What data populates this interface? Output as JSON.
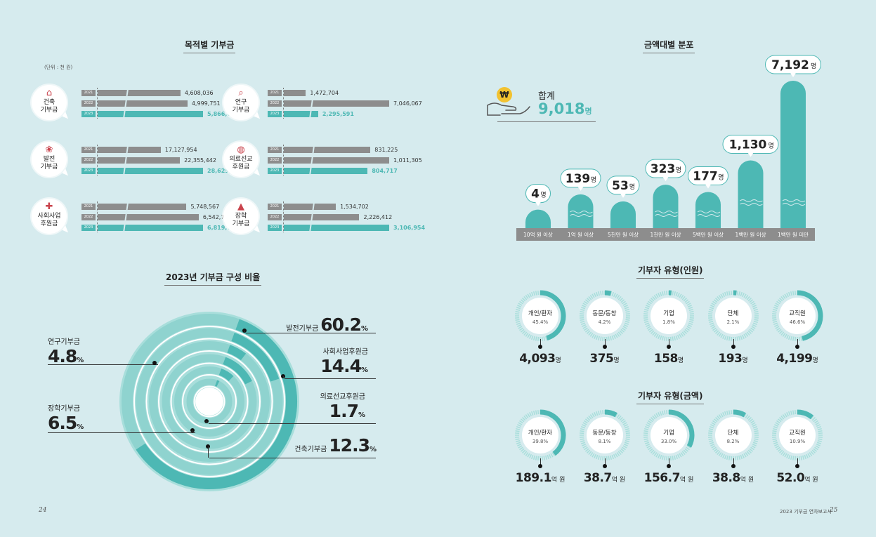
{
  "left": {
    "purpose_title": "목적별 기부금",
    "unit_note": "(단위 : 천 원)",
    "purpose_groups": [
      {
        "label1": "건축",
        "label2": "기부금",
        "icon": "house-heart-icon",
        "rows": [
          {
            "year": "2021",
            "value": "4,608,036"
          },
          {
            "year": "2022",
            "value": "4,999,751"
          },
          {
            "year": "2023",
            "value": "5,866,046"
          }
        ]
      },
      {
        "label1": "발전",
        "label2": "기부금",
        "icon": "flower-pot-icon",
        "rows": [
          {
            "year": "2021",
            "value": "17,127,954"
          },
          {
            "year": "2022",
            "value": "22,355,442"
          },
          {
            "year": "2023",
            "value": "28,629,682"
          }
        ]
      },
      {
        "label1": "사회사업",
        "label2": "후원금",
        "icon": "medical-kit-icon",
        "rows": [
          {
            "year": "2021",
            "value": "5,748,567"
          },
          {
            "year": "2022",
            "value": "6,542,749"
          },
          {
            "year": "2023",
            "value": "6,819,729"
          }
        ]
      },
      {
        "label1": "연구",
        "label2": "기부금",
        "icon": "research-search-icon",
        "rows": [
          {
            "year": "2021",
            "value": "1,472,704"
          },
          {
            "year": "2022",
            "value": "7,046,067"
          },
          {
            "year": "2023",
            "value": "2,295,591"
          }
        ]
      },
      {
        "label1": "의료선교",
        "label2": "후원금",
        "icon": "globe-icon",
        "rows": [
          {
            "year": "2021",
            "value": "831,225"
          },
          {
            "year": "2022",
            "value": "1,011,305"
          },
          {
            "year": "2023",
            "value": "804,717"
          }
        ]
      },
      {
        "label1": "장학",
        "label2": "기부금",
        "icon": "graduation-cap-icon",
        "rows": [
          {
            "year": "2021",
            "value": "1,534,702"
          },
          {
            "year": "2022",
            "value": "2,226,412"
          },
          {
            "year": "2023",
            "value": "3,106,954"
          }
        ]
      }
    ],
    "ratio_title": "2023년 기부금 구성 비율",
    "ratio_items": [
      {
        "name": "발전기부금",
        "value": "60.2",
        "unit": "%"
      },
      {
        "name": "사회사업후원금",
        "value": "14.4",
        "unit": "%"
      },
      {
        "name": "의료선교후원금",
        "value": "1.7",
        "unit": "%"
      },
      {
        "name": "건축기부금",
        "value": "12.3",
        "unit": "%"
      },
      {
        "name": "연구기부금",
        "value": "4.8",
        "unit": "%"
      },
      {
        "name": "장학기부금",
        "value": "6.5",
        "unit": "%"
      }
    ],
    "page_number": "24"
  },
  "right": {
    "amount_title": "금액대별 분포",
    "total_label": "합계",
    "total_value": "9,018",
    "total_unit": "명",
    "won_symbol": "₩",
    "page_number": "25",
    "report_name": "2023 기부금 연차보고서",
    "donor_count_title": "기부자 유형(인원)",
    "donor_amount_title": "기부자 유형(금액)",
    "donor_counts": [
      {
        "type": "개인/환자",
        "pct": "45.4%",
        "value": "4,093",
        "unit": "명"
      },
      {
        "type": "동문/동창",
        "pct": "4.2%",
        "value": "375",
        "unit": "명"
      },
      {
        "type": "기업",
        "pct": "1.8%",
        "value": "158",
        "unit": "명"
      },
      {
        "type": "단체",
        "pct": "2.1%",
        "value": "193",
        "unit": "명"
      },
      {
        "type": "교직원",
        "pct": "46.6%",
        "value": "4,199",
        "unit": "명"
      }
    ],
    "donor_amounts": [
      {
        "type": "개인/환자",
        "pct": "39.8%",
        "value": "189.1",
        "unit": "억 원"
      },
      {
        "type": "동문/동창",
        "pct": "8.1%",
        "value": "38.7",
        "unit": "억 원"
      },
      {
        "type": "기업",
        "pct": "33.0%",
        "value": "156.7",
        "unit": "억 원"
      },
      {
        "type": "단체",
        "pct": "8.2%",
        "value": "38.8",
        "unit": "억 원"
      },
      {
        "type": "교직원",
        "pct": "10.9%",
        "value": "52.0",
        "unit": "억 원"
      }
    ]
  },
  "chart_data": [
    {
      "type": "bar",
      "title": "목적별 기부금",
      "unit": "(단위 : 천 원)",
      "categories": [
        "건축 기부금",
        "발전 기부금",
        "사회사업 후원금",
        "연구 기부금",
        "의료선교 후원금",
        "장학 기부금"
      ],
      "series": [
        {
          "name": "2021",
          "values": [
            4608036,
            17127954,
            5748567,
            1472704,
            831225,
            1534702
          ]
        },
        {
          "name": "2022",
          "values": [
            4999751,
            22355442,
            6542749,
            7046067,
            1011305,
            2226412
          ]
        },
        {
          "name": "2023",
          "values": [
            5866046,
            28629682,
            6819729,
            2295591,
            804717,
            3106954
          ]
        }
      ]
    },
    {
      "type": "pie",
      "title": "2023년 기부금 구성 비율",
      "categories": [
        "발전기부금",
        "사회사업후원금",
        "의료선교후원금",
        "건축기부금",
        "연구기부금",
        "장학기부금"
      ],
      "values": [
        60.2,
        14.4,
        1.7,
        12.3,
        4.8,
        6.5
      ]
    },
    {
      "type": "bar",
      "title": "금액대별 분포",
      "categories": [
        "10억 원 이상",
        "1억 원 이상",
        "5천만 원 이상",
        "1천만 원 이상",
        "5백만 원 이상",
        "1백만 원 이상",
        "1백만 원 미만"
      ],
      "values": [
        4,
        139,
        53,
        323,
        177,
        1130,
        7192
      ],
      "unit": "명",
      "broken_axis": true
    },
    {
      "type": "pie",
      "title": "기부자 유형(인원)",
      "categories": [
        "개인/환자",
        "동문/동창",
        "기업",
        "단체",
        "교직원"
      ],
      "values": [
        45.4,
        4.2,
        1.8,
        2.1,
        46.6
      ],
      "counts": [
        4093,
        375,
        158,
        193,
        4199
      ]
    },
    {
      "type": "pie",
      "title": "기부자 유형(금액)",
      "categories": [
        "개인/환자",
        "동문/동창",
        "기업",
        "단체",
        "교직원"
      ],
      "values": [
        39.8,
        8.1,
        33.0,
        8.2,
        10.9
      ],
      "amounts": [
        189.1,
        38.7,
        156.7,
        38.8,
        52.0
      ]
    }
  ]
}
